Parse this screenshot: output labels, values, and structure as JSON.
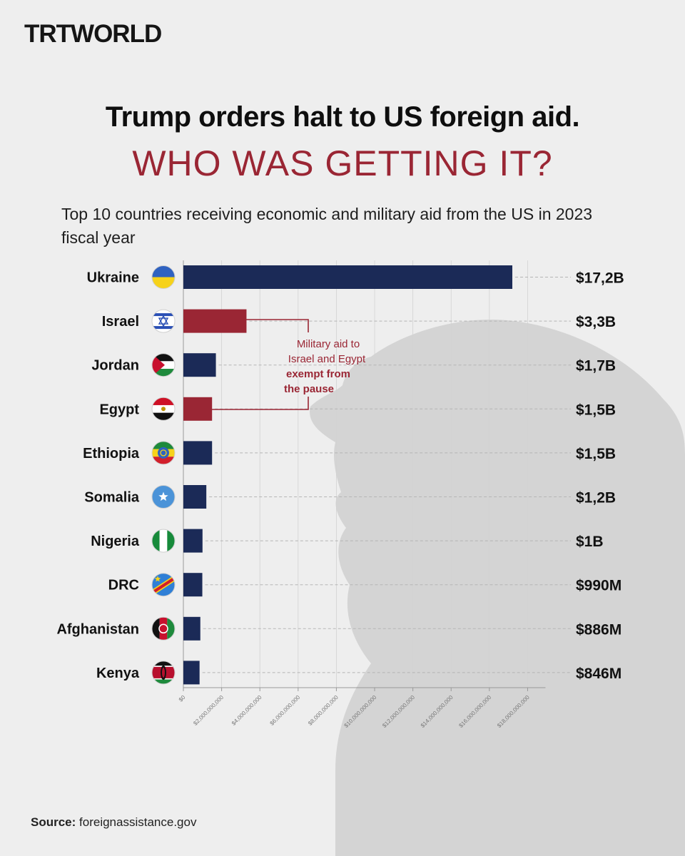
{
  "brand": {
    "part1": "TRT",
    "part2": "WORLD"
  },
  "headline": "Trump orders halt to US foreign aid.",
  "subheadline": "WHO WAS GETTING IT?",
  "description": "Top 10 countries receiving economic and military aid from the US in 2023 fiscal year",
  "source_label": "Source:",
  "source_value": "foreignassistance.gov",
  "annotation": {
    "lines": [
      "Military aid to",
      "Israel and Egypt"
    ],
    "bold_lines": [
      "exempt from",
      "the pause"
    ]
  },
  "colors": {
    "navy": "#1b2a57",
    "red": "#9a2634",
    "background": "#eeeeee"
  },
  "chart_data": {
    "type": "bar",
    "orientation": "horizontal",
    "categories": [
      "Ukraine",
      "Israel",
      "Jordan",
      "Egypt",
      "Ethiopia",
      "Somalia",
      "Nigeria",
      "DRC",
      "Afghanistan",
      "Kenya"
    ],
    "values": [
      17200000000,
      3300000000,
      1700000000,
      1500000000,
      1500000000,
      1200000000,
      1000000000,
      990000000,
      886000000,
      846000000
    ],
    "value_labels": [
      "$17,2B",
      "$3,3B",
      "$1,7B",
      "$1,5B",
      "$1,5B",
      "$1,2B",
      "$1B",
      "$990M",
      "$886M",
      "$846M"
    ],
    "highlight": [
      "Israel",
      "Egypt"
    ],
    "flag_icons": [
      "ukraine-flag-icon",
      "israel-flag-icon",
      "jordan-flag-icon",
      "egypt-flag-icon",
      "ethiopia-flag-icon",
      "somalia-flag-icon",
      "nigeria-flag-icon",
      "drc-flag-icon",
      "afghanistan-flag-icon",
      "kenya-flag-icon"
    ],
    "x_ticks": [
      0,
      2000000000,
      4000000000,
      6000000000,
      8000000000,
      10000000000,
      12000000000,
      14000000000,
      16000000000,
      18000000000
    ],
    "x_tick_labels": [
      "$0",
      "$2,000,000,000",
      "$4,000,000,000",
      "$6,000,000,000",
      "$8,000,000,000",
      "$10,000,000,000",
      "$12,000,000,000",
      "$14,000,000,000",
      "$16,000,000,000",
      "$18,000,000,000"
    ],
    "xlim": [
      0,
      18000000000
    ],
    "grid": true
  }
}
